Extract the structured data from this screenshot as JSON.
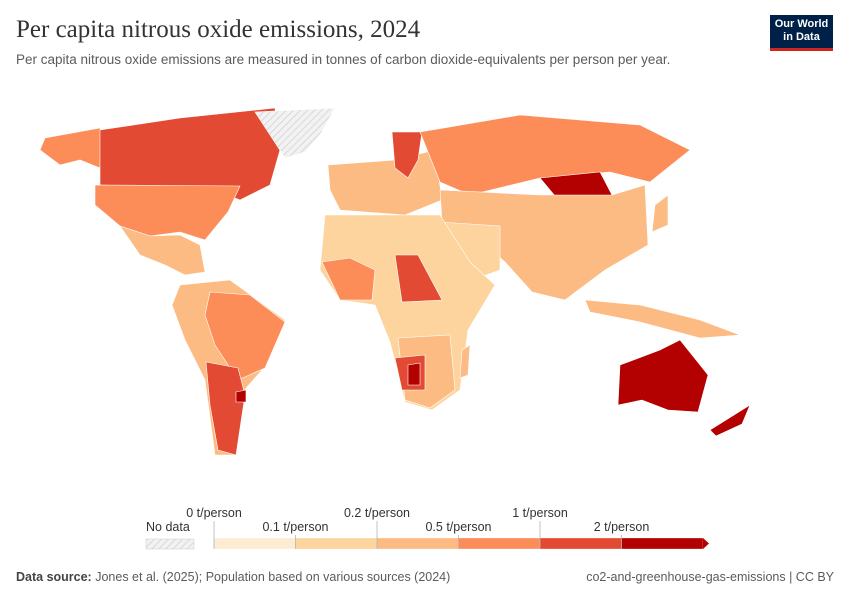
{
  "header": {
    "title": "Per capita nitrous oxide emissions, 2024",
    "subtitle": "Per capita nitrous oxide emissions are measured in tonnes of carbon dioxide-equivalents per person per year.",
    "logo": "Our World in Data"
  },
  "legend": {
    "no_data": "No data",
    "ticks": [
      "0 t/person",
      "0.1 t/person",
      "0.2 t/person",
      "0.5 t/person",
      "1 t/person",
      "2 t/person"
    ],
    "colors": [
      "#fdebd3",
      "#fdd49e",
      "#fdbb84",
      "#fc8d59",
      "#e34a33",
      "#b30000"
    ],
    "no_data_color": "#e6e6e6"
  },
  "footer": {
    "source_label": "Data source:",
    "source": "Jones et al. (2025); Population based on various sources (2024)",
    "right": "co2-and-greenhouse-gas-emissions | CC BY"
  }
}
